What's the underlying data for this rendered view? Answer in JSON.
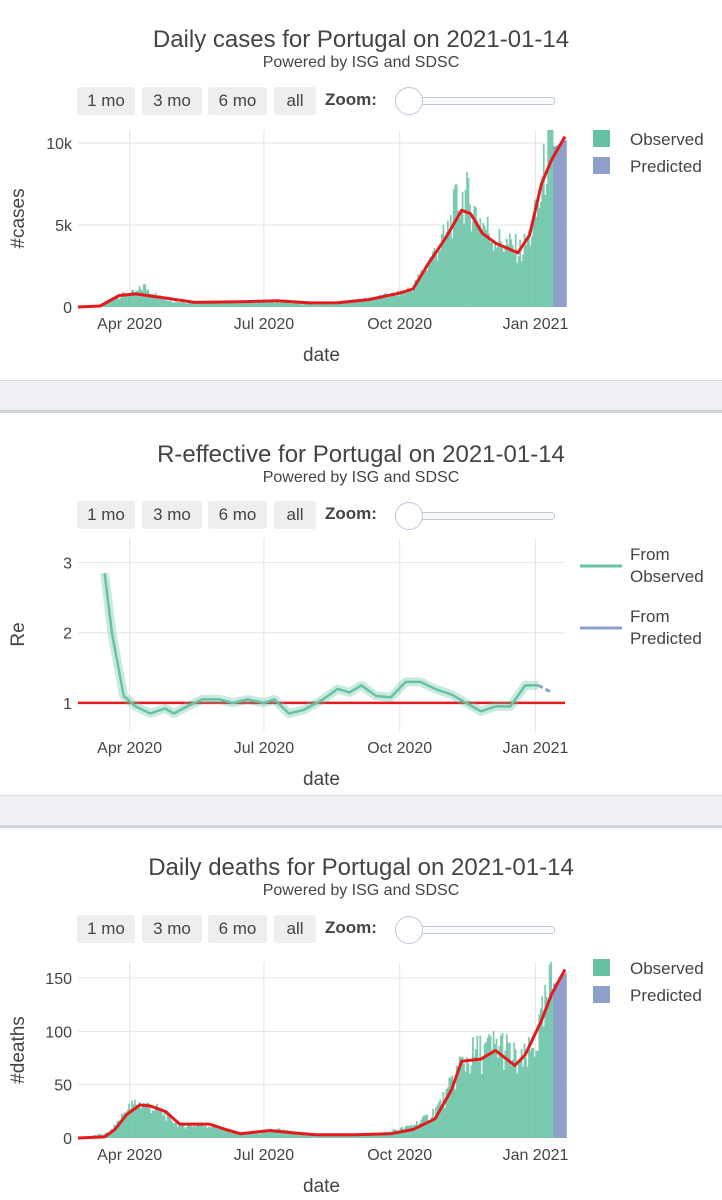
{
  "controls": {
    "buttons": [
      "1 mo",
      "3 mo",
      "6 mo",
      "all"
    ],
    "zoom_label": "Zoom:"
  },
  "colors": {
    "observed": "#66c2a5",
    "predicted": "#8da0cb",
    "smooth": "#e41a1c",
    "grid": "#e5e5e5"
  },
  "charts": [
    {
      "id": "cases",
      "title": "Daily cases for Portugal on 2021-01-14",
      "subtitle": "Powered by ISG and SDSC",
      "ylabel": "#cases",
      "xlabel": "date",
      "legend": [
        "Observed",
        "Predicted"
      ]
    },
    {
      "id": "re",
      "title": "R-effective for Portugal on 2021-01-14",
      "subtitle": "Powered by ISG and SDSC",
      "ylabel": "Re",
      "xlabel": "date",
      "legend": [
        "From\nObserved",
        "From\nPredicted"
      ]
    },
    {
      "id": "deaths",
      "title": "Daily deaths for Portugal on 2021-01-14",
      "subtitle": "Powered by ISG and SDSC",
      "ylabel": "#deaths",
      "xlabel": "date",
      "legend": [
        "Observed",
        "Predicted"
      ]
    }
  ],
  "chart_data": [
    {
      "type": "bar",
      "title": "Daily cases for Portugal on 2021-01-14",
      "subtitle": "Powered by ISG and SDSC",
      "xlabel": "date",
      "ylabel": "#cases",
      "x_range": [
        "2020-02-26",
        "2021-01-21"
      ],
      "ylim": [
        0,
        10800
      ],
      "xticks": [
        {
          "date": "2020-04-01",
          "label": "Apr 2020"
        },
        {
          "date": "2020-07-01",
          "label": "Jul 2020"
        },
        {
          "date": "2020-10-01",
          "label": "Oct 2020"
        },
        {
          "date": "2021-01-01",
          "label": "Jan 2021"
        }
      ],
      "yticks": [
        {
          "value": 0,
          "label": "0"
        },
        {
          "value": 5000,
          "label": "5k"
        },
        {
          "value": 10000,
          "label": "10k"
        }
      ],
      "legend_placement": "top-right",
      "series": [
        {
          "name": "Observed",
          "kind": "bar",
          "points": [
            [
              "2020-02-26",
              0
            ],
            [
              "2020-03-10",
              50
            ],
            [
              "2020-03-20",
              500
            ],
            [
              "2020-03-28",
              800
            ],
            [
              "2020-04-05",
              900
            ],
            [
              "2020-04-10",
              1300
            ],
            [
              "2020-04-20",
              650
            ],
            [
              "2020-05-01",
              350
            ],
            [
              "2020-05-15",
              250
            ],
            [
              "2020-06-01",
              280
            ],
            [
              "2020-06-20",
              330
            ],
            [
              "2020-07-01",
              380
            ],
            [
              "2020-07-15",
              300
            ],
            [
              "2020-08-01",
              180
            ],
            [
              "2020-08-20",
              250
            ],
            [
              "2020-09-05",
              450
            ],
            [
              "2020-09-20",
              700
            ],
            [
              "2020-10-01",
              850
            ],
            [
              "2020-10-10",
              1300
            ],
            [
              "2020-10-20",
              2800
            ],
            [
              "2020-11-01",
              4500
            ],
            [
              "2020-11-08",
              6500
            ],
            [
              "2020-11-14",
              7000
            ],
            [
              "2020-11-20",
              6000
            ],
            [
              "2020-11-28",
              5000
            ],
            [
              "2020-12-05",
              4200
            ],
            [
              "2020-12-15",
              3800
            ],
            [
              "2020-12-22",
              3500
            ],
            [
              "2020-12-28",
              4500
            ],
            [
              "2021-01-03",
              6500
            ],
            [
              "2021-01-08",
              9500
            ],
            [
              "2021-01-12",
              10500
            ]
          ]
        },
        {
          "name": "Predicted",
          "kind": "bar",
          "points": [
            [
              "2021-01-14",
              9800
            ],
            [
              "2021-01-21",
              10200
            ]
          ]
        },
        {
          "name": "smoothed",
          "kind": "line",
          "points": [
            [
              "2020-02-26",
              0
            ],
            [
              "2020-03-12",
              60
            ],
            [
              "2020-03-25",
              700
            ],
            [
              "2020-04-05",
              800
            ],
            [
              "2020-04-25",
              550
            ],
            [
              "2020-05-15",
              280
            ],
            [
              "2020-06-15",
              320
            ],
            [
              "2020-07-10",
              380
            ],
            [
              "2020-08-01",
              250
            ],
            [
              "2020-08-20",
              260
            ],
            [
              "2020-09-10",
              450
            ],
            [
              "2020-10-01",
              850
            ],
            [
              "2020-10-10",
              1100
            ],
            [
              "2020-10-20",
              2600
            ],
            [
              "2020-11-01",
              4200
            ],
            [
              "2020-11-12",
              5900
            ],
            [
              "2020-11-18",
              5700
            ],
            [
              "2020-11-26",
              4500
            ],
            [
              "2020-12-05",
              3900
            ],
            [
              "2020-12-20",
              3300
            ],
            [
              "2020-12-28",
              4400
            ],
            [
              "2021-01-05",
              7500
            ],
            [
              "2021-01-12",
              9000
            ]
          ]
        },
        {
          "name": "smoothed-predicted",
          "kind": "line",
          "points": [
            [
              "2021-01-12",
              9000
            ],
            [
              "2021-01-21",
              10400
            ]
          ]
        }
      ]
    },
    {
      "type": "line",
      "title": "R-effective for Portugal on 2021-01-14",
      "subtitle": "Powered by ISG and SDSC",
      "xlabel": "date",
      "ylabel": "Re",
      "x_range": [
        "2020-02-26",
        "2021-01-21"
      ],
      "ylim": [
        0.6,
        3.35
      ],
      "xticks": [
        {
          "date": "2020-04-01",
          "label": "Apr 2020"
        },
        {
          "date": "2020-07-01",
          "label": "Jul 2020"
        },
        {
          "date": "2020-10-01",
          "label": "Oct 2020"
        },
        {
          "date": "2021-01-01",
          "label": "Jan 2021"
        }
      ],
      "yticks": [
        {
          "value": 1,
          "label": "1"
        },
        {
          "value": 2,
          "label": "2"
        },
        {
          "value": 3,
          "label": "3"
        }
      ],
      "legend_placement": "top-right",
      "reference_line": 1,
      "series": [
        {
          "name": "From Observed",
          "kind": "line",
          "points": [
            [
              "2020-03-15",
              2.85
            ],
            [
              "2020-03-20",
              2.0
            ],
            [
              "2020-03-28",
              1.1
            ],
            [
              "2020-04-05",
              0.95
            ],
            [
              "2020-04-15",
              0.85
            ],
            [
              "2020-04-25",
              0.92
            ],
            [
              "2020-05-01",
              0.85
            ],
            [
              "2020-05-10",
              0.95
            ],
            [
              "2020-05-20",
              1.05
            ],
            [
              "2020-06-01",
              1.05
            ],
            [
              "2020-06-10",
              1.0
            ],
            [
              "2020-06-20",
              1.05
            ],
            [
              "2020-07-01",
              1.0
            ],
            [
              "2020-07-08",
              1.05
            ],
            [
              "2020-07-18",
              0.85
            ],
            [
              "2020-07-28",
              0.9
            ],
            [
              "2020-08-10",
              1.05
            ],
            [
              "2020-08-20",
              1.2
            ],
            [
              "2020-08-28",
              1.15
            ],
            [
              "2020-09-05",
              1.25
            ],
            [
              "2020-09-15",
              1.1
            ],
            [
              "2020-09-25",
              1.08
            ],
            [
              "2020-10-05",
              1.3
            ],
            [
              "2020-10-15",
              1.3
            ],
            [
              "2020-10-25",
              1.2
            ],
            [
              "2020-11-05",
              1.12
            ],
            [
              "2020-11-15",
              1.0
            ],
            [
              "2020-11-25",
              0.88
            ],
            [
              "2020-12-05",
              0.95
            ],
            [
              "2020-12-15",
              0.95
            ],
            [
              "2020-12-25",
              1.25
            ],
            [
              "2021-01-03",
              1.25
            ]
          ]
        },
        {
          "name": "From Predicted",
          "kind": "line",
          "points": [
            [
              "2021-01-03",
              1.25
            ],
            [
              "2021-01-12",
              1.15
            ]
          ]
        }
      ]
    },
    {
      "type": "bar",
      "title": "Daily deaths for Portugal on 2021-01-14",
      "subtitle": "Powered by ISG and SDSC",
      "xlabel": "date",
      "ylabel": "#deaths",
      "x_range": [
        "2020-02-26",
        "2021-01-21"
      ],
      "ylim": [
        0,
        165
      ],
      "xticks": [
        {
          "date": "2020-04-01",
          "label": "Apr 2020"
        },
        {
          "date": "2020-07-01",
          "label": "Jul 2020"
        },
        {
          "date": "2020-10-01",
          "label": "Oct 2020"
        },
        {
          "date": "2021-01-01",
          "label": "Jan 2021"
        }
      ],
      "yticks": [
        {
          "value": 0,
          "label": "0"
        },
        {
          "value": 50,
          "label": "50"
        },
        {
          "value": 100,
          "label": "100"
        },
        {
          "value": 150,
          "label": "150"
        }
      ],
      "legend_placement": "top-right",
      "series": [
        {
          "name": "Observed",
          "kind": "bar",
          "points": [
            [
              "2020-02-26",
              0
            ],
            [
              "2020-03-18",
              5
            ],
            [
              "2020-03-28",
              25
            ],
            [
              "2020-04-05",
              34
            ],
            [
              "2020-04-15",
              30
            ],
            [
              "2020-04-25",
              22
            ],
            [
              "2020-05-05",
              12
            ],
            [
              "2020-05-20",
              13
            ],
            [
              "2020-06-01",
              10
            ],
            [
              "2020-06-15",
              3
            ],
            [
              "2020-07-01",
              6
            ],
            [
              "2020-07-10",
              8
            ],
            [
              "2020-07-25",
              4
            ],
            [
              "2020-08-10",
              3
            ],
            [
              "2020-09-01",
              3
            ],
            [
              "2020-09-20",
              5
            ],
            [
              "2020-10-05",
              10
            ],
            [
              "2020-10-20",
              20
            ],
            [
              "2020-11-01",
              40
            ],
            [
              "2020-11-10",
              70
            ],
            [
              "2020-11-20",
              80
            ],
            [
              "2020-11-30",
              85
            ],
            [
              "2020-12-08",
              90
            ],
            [
              "2020-12-15",
              78
            ],
            [
              "2020-12-22",
              70
            ],
            [
              "2020-12-28",
              80
            ],
            [
              "2021-01-05",
              110
            ],
            [
              "2021-01-12",
              150
            ]
          ]
        },
        {
          "name": "Predicted",
          "kind": "bar",
          "points": [
            [
              "2021-01-14",
              145
            ],
            [
              "2021-01-21",
              155
            ]
          ]
        },
        {
          "name": "smoothed",
          "kind": "line",
          "points": [
            [
              "2020-02-26",
              0
            ],
            [
              "2020-03-15",
              1
            ],
            [
              "2020-03-22",
              8
            ],
            [
              "2020-03-30",
              22
            ],
            [
              "2020-04-08",
              31
            ],
            [
              "2020-04-15",
              30
            ],
            [
              "2020-04-25",
              25
            ],
            [
              "2020-05-05",
              13
            ],
            [
              "2020-05-25",
              13
            ],
            [
              "2020-06-05",
              8
            ],
            [
              "2020-06-15",
              4
            ],
            [
              "2020-07-05",
              7
            ],
            [
              "2020-07-20",
              5
            ],
            [
              "2020-08-05",
              3
            ],
            [
              "2020-09-01",
              3
            ],
            [
              "2020-09-25",
              4
            ],
            [
              "2020-10-10",
              8
            ],
            [
              "2020-10-25",
              18
            ],
            [
              "2020-11-05",
              45
            ],
            [
              "2020-11-12",
              72
            ],
            [
              "2020-11-25",
              74
            ],
            [
              "2020-12-05",
              82
            ],
            [
              "2020-12-18",
              68
            ],
            [
              "2020-12-25",
              78
            ],
            [
              "2021-01-05",
              110
            ],
            [
              "2021-01-12",
              135
            ]
          ]
        },
        {
          "name": "smoothed-predicted",
          "kind": "line",
          "points": [
            [
              "2021-01-12",
              135
            ],
            [
              "2021-01-21",
              158
            ]
          ]
        }
      ]
    }
  ]
}
